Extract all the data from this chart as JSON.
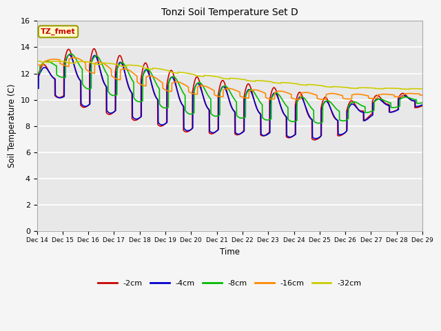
{
  "title": "Tonzi Soil Temperature Set D",
  "xlabel": "Time",
  "ylabel": "Soil Temperature (C)",
  "ylim": [
    0,
    16
  ],
  "yticks": [
    0,
    2,
    4,
    6,
    8,
    10,
    12,
    14,
    16
  ],
  "x_labels": [
    "Dec 14",
    "Dec 15",
    "Dec 16",
    "Dec 17",
    "Dec 18",
    "Dec 19",
    "Dec 20",
    "Dec 21",
    "Dec 22",
    "Dec 23",
    "Dec 24",
    "Dec 25",
    "Dec 26",
    "Dec 27",
    "Dec 28",
    "Dec 29"
  ],
  "series_labels": [
    "-2cm",
    "-4cm",
    "-8cm",
    "-16cm",
    "-32cm"
  ],
  "series_colors": [
    "#cc0000",
    "#0000cc",
    "#00bb00",
    "#ff8800",
    "#cccc00"
  ],
  "bg_color": "#e8e8e8",
  "legend_box_color": "#ffffcc",
  "legend_box_edge": "#999900",
  "legend_text": "TZ_fmet",
  "legend_text_color": "#cc0000"
}
